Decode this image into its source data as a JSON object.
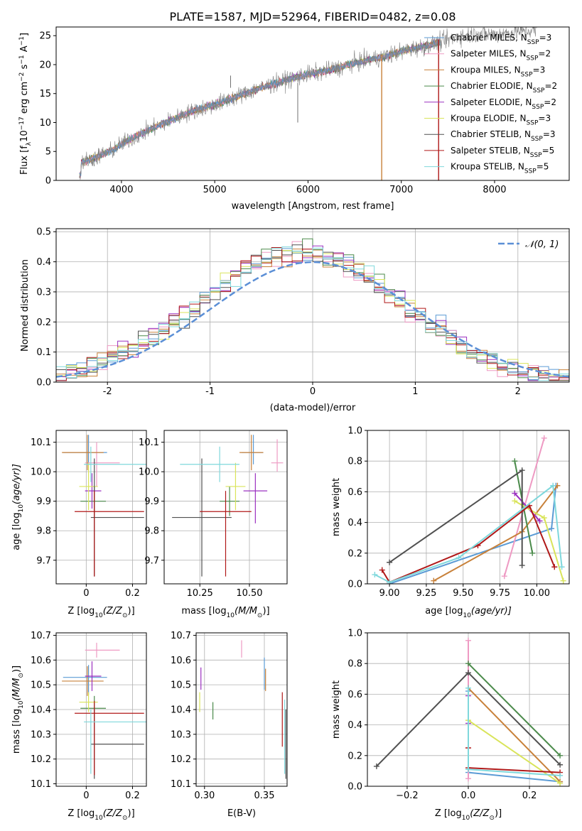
{
  "title": "PLATE=1587, MJD=52964, FIBERID=0482, z=0.08",
  "colors": {
    "Chabrier MILES": "#5b9bd5",
    "Salpeter MILES": "#ee9ac3",
    "Kroupa MILES": "#c8813a",
    "Chabrier ELODIE": "#4a8a4a",
    "Salpeter ELODIE": "#9b30c0",
    "Kroupa ELODIE": "#d9e45a",
    "Chabrier STELIB": "#505050",
    "Salpeter STELIB": "#b01818",
    "Kroupa STELIB": "#7fd8dc",
    "normal_fit": "#5b8fd6"
  },
  "spectrum_legend": [
    {
      "label": "Chabrier MILES, N",
      "sub": "SSP",
      "suffix": "=3",
      "model": "Chabrier MILES"
    },
    {
      "label": "Salpeter MILES, N",
      "sub": "SSP",
      "suffix": "=2",
      "model": "Salpeter MILES"
    },
    {
      "label": "Kroupa MILES, N",
      "sub": "SSP",
      "suffix": "=3",
      "model": "Kroupa MILES"
    },
    {
      "label": "Chabrier ELODIE, N",
      "sub": "SSP",
      "suffix": "=2",
      "model": "Chabrier ELODIE"
    },
    {
      "label": "Salpeter ELODIE, N",
      "sub": "SSP",
      "suffix": "=2",
      "model": "Salpeter ELODIE"
    },
    {
      "label": "Kroupa ELODIE, N",
      "sub": "SSP",
      "suffix": "=3",
      "model": "Kroupa ELODIE"
    },
    {
      "label": "Chabrier STELIB, N",
      "sub": "SSP",
      "suffix": "=3",
      "model": "Chabrier STELIB"
    },
    {
      "label": "Salpeter STELIB, N",
      "sub": "SSP",
      "suffix": "=5",
      "model": "Salpeter STELIB"
    },
    {
      "label": "Kroupa STELIB, N",
      "sub": "SSP",
      "suffix": "=5",
      "model": "Kroupa STELIB"
    }
  ],
  "hist_legend": "𝒩(0, 1)",
  "chart_data": [
    {
      "id": "spectrum",
      "type": "line",
      "xlabel": "wavelength [Angstrom, rest frame]",
      "ylabel": "Flux [f",
      "ylabel_parts": [
        "Flux [f",
        "λ",
        "10",
        "−17",
        " erg cm",
        "−2",
        " s",
        "−1",
        " A",
        "−1",
        "]"
      ],
      "xlim": [
        3300,
        8800
      ],
      "ylim": [
        0,
        26.5
      ],
      "xticks": [
        4000,
        5000,
        6000,
        7000,
        8000
      ],
      "yticks": [
        0,
        5,
        10,
        15,
        20,
        25
      ],
      "grid": false,
      "legend_position": "right",
      "continuum": [
        [
          3550,
          3.0
        ],
        [
          3700,
          3.8
        ],
        [
          3900,
          5.2
        ],
        [
          4000,
          6.3
        ],
        [
          4200,
          8.0
        ],
        [
          4500,
          10.2
        ],
        [
          4800,
          12.2
        ],
        [
          5000,
          13.0
        ],
        [
          5200,
          14.3
        ],
        [
          5500,
          16.0
        ],
        [
          5800,
          17.5
        ],
        [
          6000,
          18.3
        ],
        [
          6300,
          19.3
        ],
        [
          6500,
          20.3
        ],
        [
          6800,
          21.3
        ],
        [
          7000,
          22.3
        ],
        [
          7200,
          23.0
        ],
        [
          7400,
          23.8
        ],
        [
          7600,
          24.8
        ],
        [
          7800,
          25.3
        ],
        [
          8000,
          25.2
        ],
        [
          8200,
          25.6
        ],
        [
          8450,
          26.0
        ]
      ],
      "features": [
        {
          "x": 5170,
          "y": 16.0
        },
        {
          "x": 5890,
          "y": 10.0
        },
        {
          "x": 6790,
          "y": 0
        },
        {
          "x": 7400,
          "y": 0
        }
      ]
    },
    {
      "id": "residual_histogram",
      "type": "step",
      "xlabel": "(data-model)/error",
      "ylabel": "Normed distribution",
      "xlim": [
        -2.5,
        2.5
      ],
      "ylim": [
        0,
        0.51
      ],
      "xticks": [
        -2,
        -1,
        0,
        1,
        2
      ],
      "yticks": [
        0.0,
        0.1,
        0.2,
        0.3,
        0.4,
        0.5
      ],
      "grid": true,
      "legend_position": "top-right",
      "bins": [
        -2.5,
        2.5,
        50
      ],
      "normal": {
        "mu": 0,
        "sigma": 1
      }
    },
    {
      "id": "age_vs_Z",
      "type": "scatter",
      "xlabel": "Z [log",
      "xlabel_parts": [
        "Z [log",
        "10",
        "(Z/Z",
        "⊙",
        ")]"
      ],
      "ylabel_parts": [
        "age  [log",
        "10",
        "(age/yr)]"
      ],
      "xlim": [
        -0.13,
        0.26
      ],
      "ylim": [
        9.62,
        10.14
      ],
      "xticks": [
        0.0,
        0.2
      ],
      "yticks": [
        9.7,
        9.8,
        9.9,
        10.0,
        10.1
      ],
      "grid": true,
      "points": [
        {
          "model": "Chabrier MILES",
          "x": 0.01,
          "xerr": [
            0.11,
            0.08
          ],
          "y": 10.065,
          "yerr": [
            0.04,
            0.06
          ]
        },
        {
          "model": "Salpeter MILES",
          "x": 0.045,
          "xerr": [
            0.05,
            0.1
          ],
          "y": 10.03,
          "yerr": [
            0.08,
            0.07
          ]
        },
        {
          "model": "Kroupa MILES",
          "x": 0.005,
          "xerr": [
            0.11,
            0.07
          ],
          "y": 10.065,
          "yerr": [
            0.06,
            0.06
          ]
        },
        {
          "model": "Chabrier ELODIE",
          "x": 0.035,
          "xerr": [
            0.06,
            0.05
          ],
          "y": 9.9,
          "yerr": [
            0.05,
            0.05
          ]
        },
        {
          "model": "Salpeter ELODIE",
          "x": 0.025,
          "xerr": [
            0.03,
            0.04
          ],
          "y": 9.935,
          "yerr": [
            0.06,
            0.06
          ]
        },
        {
          "model": "Kroupa ELODIE",
          "x": 0.01,
          "xerr": [
            0.04,
            0.04
          ],
          "y": 9.95,
          "yerr": [
            0.08,
            0.08
          ]
        },
        {
          "model": "Chabrier STELIB",
          "x": 0.035,
          "xerr": [
            0.015,
            0.215
          ],
          "y": 9.845,
          "yerr": [
            0.2,
            0.2
          ]
        },
        {
          "model": "Salpeter STELIB",
          "x": 0.035,
          "xerr": [
            0.085,
            0.215
          ],
          "y": 9.865,
          "yerr": [
            0.22,
            0.07
          ]
        },
        {
          "model": "Kroupa STELIB",
          "x": 0.02,
          "xerr": [
            0.03,
            0.24
          ],
          "y": 10.025,
          "yerr": [
            0.06,
            0.06
          ]
        }
      ]
    },
    {
      "id": "age_vs_mass",
      "type": "scatter",
      "xlabel_parts": [
        "mass [log",
        "10",
        "(M/M",
        "⊙",
        ")]"
      ],
      "xlim": [
        10.07,
        10.69
      ],
      "ylim": [
        9.62,
        10.14
      ],
      "xticks": [
        10.25,
        10.5
      ],
      "xticklabels": [
        "10.25",
        "10.50"
      ],
      "yticks": [
        9.7,
        9.8,
        9.9,
        10.0,
        10.1
      ],
      "grid": true,
      "points": [
        {
          "model": "Chabrier MILES",
          "x": 10.52,
          "xerr": [
            0.06,
            0.05
          ],
          "y": 10.065,
          "yerr": [
            0.04,
            0.06
          ]
        },
        {
          "model": "Salpeter MILES",
          "x": 10.64,
          "xerr": [
            0.03,
            0.03
          ],
          "y": 10.03,
          "yerr": [
            0.03,
            0.08
          ]
        },
        {
          "model": "Kroupa MILES",
          "x": 10.51,
          "xerr": [
            0.06,
            0.06
          ],
          "y": 10.065,
          "yerr": [
            0.06,
            0.06
          ]
        },
        {
          "model": "Chabrier ELODIE",
          "x": 10.4,
          "xerr": [
            0.05,
            0.05
          ],
          "y": 9.9,
          "yerr": [
            0.05,
            0.05
          ]
        },
        {
          "model": "Salpeter ELODIE",
          "x": 10.53,
          "xerr": [
            0.06,
            0.06
          ],
          "y": 9.935,
          "yerr": [
            0.11,
            0.06
          ]
        },
        {
          "model": "Kroupa ELODIE",
          "x": 10.43,
          "xerr": [
            0.05,
            0.05
          ],
          "y": 9.95,
          "yerr": [
            0.08,
            0.08
          ]
        },
        {
          "model": "Chabrier STELIB",
          "x": 10.26,
          "xerr": [
            0.15,
            0.15
          ],
          "y": 9.845,
          "yerr": [
            0.2,
            0.2
          ]
        },
        {
          "model": "Salpeter STELIB",
          "x": 10.38,
          "xerr": [
            0.13,
            0.13
          ],
          "y": 9.865,
          "yerr": [
            0.22,
            0.07
          ]
        },
        {
          "model": "Kroupa STELIB",
          "x": 10.35,
          "xerr": [
            0.2,
            0.1
          ],
          "y": 10.025,
          "yerr": [
            0.06,
            0.06
          ]
        }
      ]
    },
    {
      "id": "mass_weight_vs_age",
      "type": "line",
      "xlabel_parts": [
        "age  [log",
        "10",
        "(age/yr)]"
      ],
      "ylabel": "mass weight",
      "xlim": [
        8.85,
        10.22
      ],
      "ylim": [
        0,
        1.0
      ],
      "xticks": [
        9.0,
        9.25,
        9.5,
        9.75,
        10.0
      ],
      "xticklabels": [
        "9.00",
        "9.25",
        "9.50",
        "9.75",
        "10.00"
      ],
      "yticks": [
        0.0,
        0.2,
        0.4,
        0.6,
        0.8,
        1.0
      ],
      "grid": true,
      "series": [
        {
          "model": "Chabrier MILES",
          "x": [
            9.0,
            10.1,
            10.13
          ],
          "y": [
            0.0,
            0.36,
            0.64
          ]
        },
        {
          "model": "Salpeter MILES",
          "x": [
            9.78,
            10.05
          ],
          "y": [
            0.05,
            0.95
          ]
        },
        {
          "model": "Kroupa MILES",
          "x": [
            9.3,
            9.9,
            10.14
          ],
          "y": [
            0.02,
            0.34,
            0.64
          ]
        },
        {
          "model": "Chabrier ELODIE",
          "x": [
            9.85,
            9.97
          ],
          "y": [
            0.8,
            0.2
          ]
        },
        {
          "model": "Salpeter ELODIE",
          "x": [
            9.85,
            10.02
          ],
          "y": [
            0.59,
            0.41
          ]
        },
        {
          "model": "Kroupa ELODIE",
          "x": [
            9.85,
            10.05,
            10.18
          ],
          "y": [
            0.54,
            0.43,
            0.02
          ]
        },
        {
          "model": "Chabrier STELIB",
          "x": [
            9.0,
            9.9,
            9.9
          ],
          "y": [
            0.14,
            0.74,
            0.12
          ]
        },
        {
          "model": "Salpeter STELIB",
          "x": [
            8.95,
            9.0,
            9.6,
            9.95,
            10.12
          ],
          "y": [
            0.09,
            0.01,
            0.25,
            0.51,
            0.11
          ]
        },
        {
          "model": "Kroupa STELIB",
          "x": [
            8.9,
            9.0,
            9.47,
            10.11,
            10.17
          ],
          "y": [
            0.06,
            0.01,
            0.17,
            0.64,
            0.11
          ]
        }
      ]
    },
    {
      "id": "mass_vs_Z",
      "type": "scatter",
      "xlabel_parts": [
        "Z [log",
        "10",
        "(Z/Z",
        "⊙",
        ")]"
      ],
      "ylabel_parts": [
        "mass [log",
        "10",
        "(M/M",
        "⊙",
        ")]"
      ],
      "xlim": [
        -0.13,
        0.26
      ],
      "ylim": [
        10.09,
        10.71
      ],
      "xticks": [
        0.0,
        0.2
      ],
      "yticks": [
        10.1,
        10.2,
        10.3,
        10.4,
        10.5,
        10.6,
        10.7
      ],
      "grid": true,
      "points": [
        {
          "model": "Chabrier MILES",
          "x": 0.01,
          "xerr": [
            0.11,
            0.08
          ],
          "y": 10.53,
          "yerr": [
            0.07,
            0.05
          ]
        },
        {
          "model": "Salpeter MILES",
          "x": 0.045,
          "xerr": [
            0.05,
            0.1
          ],
          "y": 10.64,
          "yerr": [
            0.03,
            0.03
          ]
        },
        {
          "model": "Kroupa MILES",
          "x": 0.005,
          "xerr": [
            0.11,
            0.07
          ],
          "y": 10.515,
          "yerr": [
            0.06,
            0.06
          ]
        },
        {
          "model": "Chabrier ELODIE",
          "x": 0.035,
          "xerr": [
            0.06,
            0.05
          ],
          "y": 10.405,
          "yerr": [
            0.05,
            0.05
          ]
        },
        {
          "model": "Salpeter ELODIE",
          "x": 0.025,
          "xerr": [
            0.03,
            0.04
          ],
          "y": 10.535,
          "yerr": [
            0.06,
            0.06
          ]
        },
        {
          "model": "Kroupa ELODIE",
          "x": 0.01,
          "xerr": [
            0.04,
            0.04
          ],
          "y": 10.43,
          "yerr": [
            0.04,
            0.04
          ]
        },
        {
          "model": "Chabrier STELIB",
          "x": 0.035,
          "xerr": [
            0.015,
            0.215
          ],
          "y": 10.26,
          "yerr": [
            0.14,
            0.14
          ]
        },
        {
          "model": "Salpeter STELIB",
          "x": 0.035,
          "xerr": [
            0.085,
            0.215
          ],
          "y": 10.385,
          "yerr": [
            0.25,
            0.05
          ]
        },
        {
          "model": "Kroupa STELIB",
          "x": 0.02,
          "xerr": [
            0.03,
            0.24
          ],
          "y": 10.35,
          "yerr": [
            0.21,
            0.05
          ]
        }
      ]
    },
    {
      "id": "mass_vs_EBV",
      "type": "scatter",
      "xlabel": "E(B-V)",
      "xlim": [
        0.293,
        0.369
      ],
      "ylim": [
        10.09,
        10.71
      ],
      "xticks": [
        0.3,
        0.35
      ],
      "xticklabels": [
        "0.30",
        "0.35"
      ],
      "yticks": [
        10.1,
        10.2,
        10.3,
        10.4,
        10.5,
        10.6,
        10.7
      ],
      "grid": true,
      "points": [
        {
          "model": "Chabrier MILES",
          "x": 0.35,
          "y": 10.53,
          "yerr": [
            0.05,
            0.08
          ]
        },
        {
          "model": "Salpeter MILES",
          "x": 0.331,
          "y": 10.64,
          "yerr": [
            0.03,
            0.04
          ]
        },
        {
          "model": "Kroupa MILES",
          "x": 0.351,
          "y": 10.515,
          "yerr": [
            0.04,
            0.05
          ]
        },
        {
          "model": "Chabrier ELODIE",
          "x": 0.307,
          "y": 10.395,
          "yerr": [
            0.035,
            0.035
          ]
        },
        {
          "model": "Salpeter ELODIE",
          "x": 0.297,
          "y": 10.53,
          "yerr": [
            0.05,
            0.04
          ]
        },
        {
          "model": "Kroupa ELODIE",
          "x": 0.296,
          "y": 10.43,
          "yerr": [
            0.04,
            0.04
          ]
        },
        {
          "model": "Chabrier STELIB",
          "x": 0.368,
          "y": 10.26,
          "yerr": [
            0.14,
            0.14
          ]
        },
        {
          "model": "Salpeter STELIB",
          "x": 0.365,
          "y": 10.36,
          "yerr": [
            0.11,
            0.11
          ]
        },
        {
          "model": "Kroupa STELIB",
          "x": 0.367,
          "y": 10.29,
          "yerr": [
            0.15,
            0.15
          ]
        }
      ]
    },
    {
      "id": "mass_weight_vs_Z",
      "type": "line",
      "xlabel_parts": [
        "Z [log",
        "10",
        "(Z/Z",
        "⊙",
        ")]"
      ],
      "ylabel": "mass weight",
      "xlim": [
        -0.33,
        0.33
      ],
      "ylim": [
        0,
        1.0
      ],
      "xticks": [
        -0.2,
        0.0,
        0.2
      ],
      "xticklabels": [
        "−0.2",
        "0.0",
        "0.2"
      ],
      "yticks": [
        0.0,
        0.2,
        0.4,
        0.6,
        0.8,
        1.0
      ],
      "grid": true,
      "series": [
        {
          "model": "Chabrier MILES",
          "x": [
            0.0,
            0.0,
            0.3
          ],
          "y": [
            0.62,
            0.09,
            0.03
          ]
        },
        {
          "model": "Salpeter MILES",
          "x": [
            0.0,
            0.0
          ],
          "y": [
            0.95,
            0.05
          ]
        },
        {
          "model": "Kroupa MILES",
          "x": [
            0.0,
            0.3
          ],
          "y": [
            0.64,
            0.03
          ]
        },
        {
          "model": "Chabrier ELODIE",
          "x": [
            0.0,
            0.3
          ],
          "y": [
            0.8,
            0.2
          ]
        },
        {
          "model": "Salpeter ELODIE",
          "x": [
            0.0,
            0.0
          ],
          "y": [
            0.59,
            0.41
          ]
        },
        {
          "model": "Kroupa ELODIE",
          "x": [
            0.0,
            0.3
          ],
          "y": [
            0.43,
            0.02
          ]
        },
        {
          "model": "Chabrier STELIB",
          "x": [
            -0.3,
            0.0,
            0.3
          ],
          "y": [
            0.13,
            0.74,
            0.14
          ]
        },
        {
          "model": "Salpeter STELIB",
          "x": [
            0.0,
            0.0,
            0.3
          ],
          "y": [
            0.25,
            0.12,
            0.09
          ]
        },
        {
          "model": "Kroupa STELIB",
          "x": [
            0.0,
            0.0,
            0.3
          ],
          "y": [
            0.64,
            0.11,
            0.07
          ]
        }
      ]
    }
  ]
}
